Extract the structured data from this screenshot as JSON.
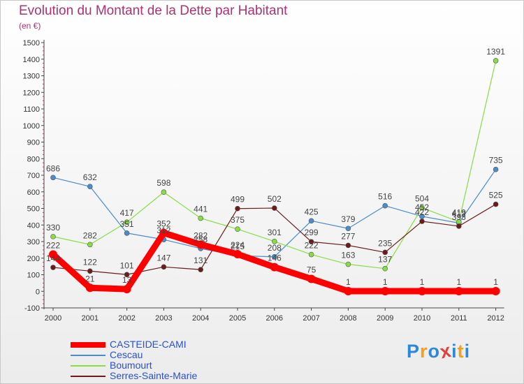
{
  "chart_data": {
    "type": "line",
    "title": "Evolution du Montant de la Dette par Habitant",
    "unit": "(en €)",
    "x": [
      "2000",
      "2001",
      "2002",
      "2003",
      "2004",
      "2005",
      "2006",
      "2007",
      "2008",
      "2009",
      "2010",
      "2011",
      "2012"
    ],
    "ylim": [
      -100,
      1500
    ],
    "yticks": [
      -100,
      0,
      100,
      200,
      300,
      400,
      500,
      600,
      700,
      800,
      900,
      1000,
      1100,
      1200,
      1300,
      1400,
      1500
    ],
    "grid": false,
    "legend_position": "bottom-left",
    "series": [
      {
        "name": "CASTEIDE-CAMI",
        "color": "#ff0000",
        "values": [
          222,
          21,
          13,
          352,
          282,
          224,
          146,
          75,
          1,
          1,
          1,
          1,
          1
        ],
        "labels": [
          "222",
          "21",
          "13",
          "352",
          "282",
          "224",
          "146",
          "75",
          "1",
          "1",
          "1",
          "1",
          "1"
        ]
      },
      {
        "name": "Cescau",
        "color": "#4a8ccc",
        "values": [
          686,
          632,
          351,
          312,
          258,
          215,
          208,
          425,
          379,
          516,
          452,
          412,
          735
        ],
        "labels": [
          "686",
          "632",
          "351",
          "312",
          "258",
          "215",
          "208",
          "425",
          "379",
          "516",
          "452",
          "412",
          "735"
        ]
      },
      {
        "name": "Boumourt",
        "color": "#88dd44",
        "values": [
          330,
          282,
          417,
          598,
          441,
          375,
          301,
          222,
          163,
          137,
          504,
          419,
          1391
        ],
        "labels": [
          "330",
          "282",
          "417",
          "598",
          "441",
          "375",
          "301",
          "222",
          "163",
          "137",
          "504",
          "419",
          "1391"
        ]
      },
      {
        "name": "Serres-Sainte-Marie",
        "color": "#6a1c1c",
        "values": [
          144,
          122,
          101,
          147,
          131,
          499,
          502,
          299,
          277,
          235,
          422,
          393,
          525
        ],
        "labels": [
          "144",
          "122",
          "101",
          "147",
          "131",
          "499",
          "502",
          "299",
          "277",
          "235",
          "422",
          "393",
          "525"
        ]
      }
    ]
  },
  "brand": {
    "text": "Proxiti",
    "letters": [
      "P",
      "r",
      "o",
      "x",
      "i",
      "t",
      "i"
    ],
    "colors": [
      "#2a8ad8",
      "#f2a020",
      "#2a8ad8",
      "#e04040",
      "#2a8ad8",
      "#f2a020",
      "#2a8ad8"
    ]
  }
}
